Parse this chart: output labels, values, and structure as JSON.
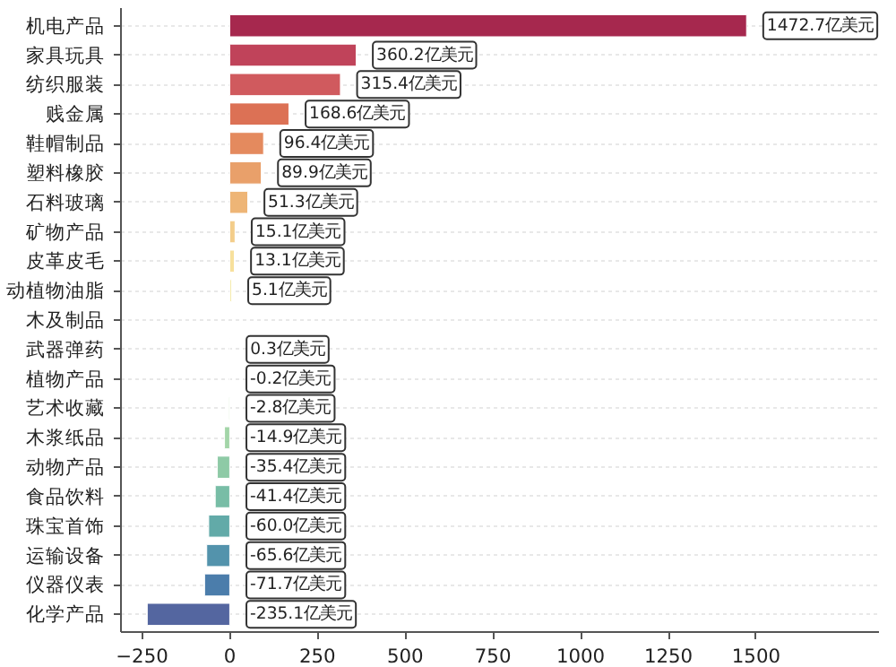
{
  "chart_data": {
    "type": "bar",
    "orientation": "horizontal",
    "categories": [
      "机电产品",
      "家具玩具",
      "纺织服装",
      "贱金属",
      "鞋帽制品",
      "塑料橡胶",
      "石料玻璃",
      "矿物产品",
      "皮革皮毛",
      "动植物油脂",
      "木及制品",
      "武器弹药",
      "植物产品",
      "艺术收藏",
      "木浆纸品",
      "动物产品",
      "食品饮料",
      "珠宝首饰",
      "运输设备",
      "仪器仪表",
      "化学产品"
    ],
    "values": [
      1472.7,
      360.2,
      315.4,
      168.6,
      96.4,
      89.9,
      51.3,
      15.1,
      13.1,
      5.1,
      null,
      0.3,
      -0.2,
      -2.8,
      -14.9,
      -35.4,
      -41.4,
      -60.0,
      -65.6,
      -71.7,
      -235.1
    ],
    "value_labels": [
      "1472.7亿美元",
      "360.2亿美元",
      "315.4亿美元",
      "168.6亿美元",
      "96.4亿美元",
      "89.9亿美元",
      "51.3亿美元",
      "15.1亿美元",
      "13.1亿美元",
      "5.1亿美元",
      null,
      "0.3亿美元",
      "-0.2亿美元",
      "-2.8亿美元",
      "-14.9亿美元",
      "-35.4亿美元",
      "-41.4亿美元",
      "-60.0亿美元",
      "-65.6亿美元",
      "-71.7亿美元",
      "-235.1亿美元"
    ],
    "colors": [
      "#a6284e",
      "#c0435a",
      "#d05a5e",
      "#dc7155",
      "#e48a5e",
      "#e9a06a",
      "#eeb576",
      "#f3cd8a",
      "#f7e09c",
      "#f5eaa8",
      "#eff1b0",
      "#e0eeb0",
      "#cde8ac",
      "#b8e0ab",
      "#a3d5a8",
      "#8ecaa6",
      "#78bda6",
      "#62aaa8",
      "#5393ac",
      "#4b7dab",
      "#5466a0"
    ],
    "xlim": [
      -310,
      1850
    ],
    "xticks": [
      -250,
      0,
      250,
      500,
      750,
      1000,
      1250,
      1500
    ],
    "grid": "y"
  }
}
